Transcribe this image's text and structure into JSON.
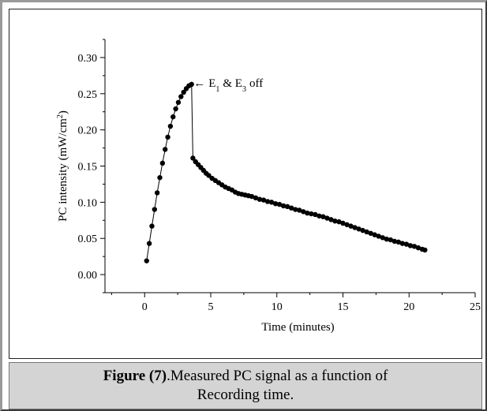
{
  "caption": {
    "figure_prefix": "Figure (",
    "figure_number": "7",
    "figure_suffix": ")",
    "text_line1": ".Measured PC signal as a function of",
    "text_line2": "Recording time."
  },
  "chart_data": {
    "type": "scatter",
    "title": "",
    "xlabel": "Time (minutes)",
    "ylabel_main": "PC intensity (mW/cm",
    "ylabel_sup": "2",
    "ylabel_end": ")",
    "xlim": [
      -3,
      25
    ],
    "ylim": [
      -0.025,
      0.325
    ],
    "x_ticks": [
      0,
      5,
      10,
      15,
      20,
      25
    ],
    "x_tick_labels": [
      "0",
      "5",
      "10",
      "15",
      "20",
      "25"
    ],
    "y_ticks": [
      0.0,
      0.05,
      0.1,
      0.15,
      0.2,
      0.25,
      0.3
    ],
    "y_tick_labels": [
      "0.00",
      "0.05",
      "0.10",
      "0.15",
      "0.20",
      "0.25",
      "0.30"
    ],
    "annotation": {
      "arrow": "←",
      "e1": "E",
      "sub1": "1",
      "amp": "& E",
      "sub3": "3",
      "rest": "off",
      "x": 3.7,
      "y": 0.265
    },
    "marker_color": "#000000",
    "series": [
      {
        "x": [
          0.15,
          0.35,
          0.55,
          0.75,
          0.95,
          1.15,
          1.35,
          1.55,
          1.75,
          1.95,
          2.15,
          2.35,
          2.55,
          2.75,
          2.95,
          3.15,
          3.35,
          3.55,
          3.65,
          3.85,
          4.05,
          4.25,
          4.45,
          4.65,
          4.85,
          5.1,
          5.35,
          5.6,
          5.85,
          6.1,
          6.35,
          6.6,
          6.85,
          7.1,
          7.35,
          7.6,
          7.85,
          8.1,
          8.4,
          8.7,
          9.0,
          9.3,
          9.6,
          9.9,
          10.2,
          10.5,
          10.8,
          11.1,
          11.4,
          11.7,
          12.0,
          12.3,
          12.6,
          12.9,
          13.2,
          13.5,
          13.8,
          14.1,
          14.4,
          14.7,
          15.0,
          15.3,
          15.6,
          15.9,
          16.2,
          16.5,
          16.8,
          17.1,
          17.4,
          17.7,
          18.0,
          18.3,
          18.6,
          18.9,
          19.2,
          19.5,
          19.8,
          20.1,
          20.4,
          20.7,
          21.0,
          21.2
        ],
        "y": [
          0.019,
          0.043,
          0.067,
          0.09,
          0.113,
          0.134,
          0.154,
          0.173,
          0.19,
          0.205,
          0.218,
          0.229,
          0.238,
          0.246,
          0.252,
          0.257,
          0.261,
          0.263,
          0.161,
          0.156,
          0.152,
          0.148,
          0.144,
          0.14,
          0.137,
          0.133,
          0.13,
          0.127,
          0.124,
          0.121,
          0.119,
          0.117,
          0.114,
          0.112,
          0.111,
          0.11,
          0.109,
          0.108,
          0.106,
          0.104,
          0.103,
          0.101,
          0.1,
          0.098,
          0.097,
          0.095,
          0.094,
          0.092,
          0.09,
          0.089,
          0.087,
          0.085,
          0.084,
          0.083,
          0.081,
          0.08,
          0.078,
          0.076,
          0.074,
          0.073,
          0.071,
          0.069,
          0.067,
          0.065,
          0.063,
          0.061,
          0.059,
          0.057,
          0.055,
          0.053,
          0.051,
          0.049,
          0.048,
          0.046,
          0.045,
          0.043,
          0.042,
          0.04,
          0.039,
          0.037,
          0.035,
          0.034
        ]
      }
    ]
  }
}
